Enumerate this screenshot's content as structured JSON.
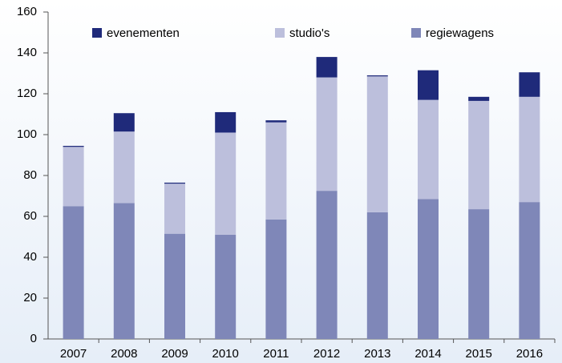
{
  "chart_data": {
    "type": "stacked-bar",
    "categories": [
      "2007",
      "2008",
      "2009",
      "2010",
      "2011",
      "2012",
      "2013",
      "2014",
      "2015",
      "2016"
    ],
    "series": [
      {
        "name": "regiewagens",
        "color": "#7f87b8",
        "values": [
          65,
          66.5,
          51.5,
          51,
          58.5,
          72.5,
          62,
          68.5,
          63.5,
          67
        ]
      },
      {
        "name": "studio's",
        "color": "#bcbfdc",
        "values": [
          29,
          35,
          24.5,
          50,
          47.5,
          55.5,
          66.5,
          48.5,
          53,
          51.5
        ]
      },
      {
        "name": "evenementen",
        "color": "#1f2a7a",
        "values": [
          0.5,
          9,
          0.5,
          10,
          1,
          10,
          0.5,
          14.5,
          2,
          12
        ]
      }
    ],
    "ylim": [
      0,
      160
    ],
    "yticks": [
      0,
      20,
      40,
      60,
      80,
      100,
      120,
      140,
      160
    ],
    "legend": "top"
  }
}
